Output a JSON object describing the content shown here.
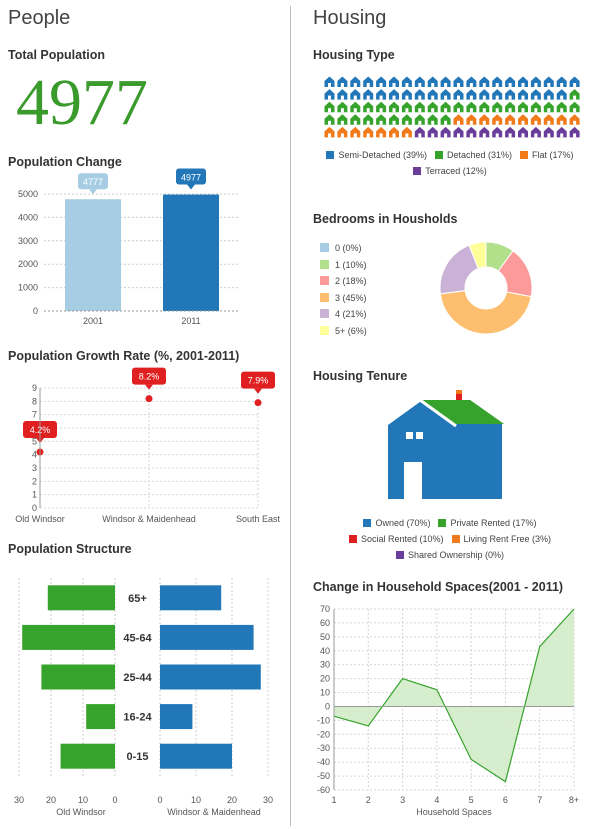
{
  "people": {
    "title": "People",
    "total_population": {
      "label": "Total Population",
      "value": "4977"
    },
    "population_change": {
      "title": "Population Change",
      "chart_data": {
        "type": "bar",
        "categories": [
          "2001",
          "2011"
        ],
        "values": [
          4777,
          4977
        ],
        "value_labels": [
          "4777",
          "4977"
        ],
        "ylim": [
          0,
          5000
        ],
        "yticks": [
          0,
          1000,
          2000,
          3000,
          4000,
          5000
        ],
        "colors": [
          "#a6cde3",
          "#2277b8"
        ],
        "grid": true
      }
    },
    "growth_rate": {
      "title": "Population Growth Rate (%, 2001-2011)",
      "chart_data": {
        "type": "scatter",
        "categories": [
          "Old Windsor",
          "Windsor & Maidenhead",
          "South East"
        ],
        "values": [
          4.2,
          8.2,
          7.9
        ],
        "value_labels": [
          "4.2%",
          "8.2%",
          "7.9%"
        ],
        "ylim": [
          0,
          9
        ],
        "yticks": [
          0,
          1,
          2,
          3,
          4,
          5,
          6,
          7,
          8,
          9
        ],
        "color": "#e02020",
        "grid": true
      }
    },
    "structure": {
      "title": "Population Structure",
      "chart_data": {
        "type": "bar",
        "categories": [
          "65+",
          "45-64",
          "25-44",
          "16-24",
          "0-15"
        ],
        "series": [
          {
            "name": "Old Windsor",
            "values": [
              21,
              29,
              23,
              9,
              17
            ],
            "color": "#36a32c"
          },
          {
            "name": "Windsor & Maidenhead",
            "values": [
              17,
              26,
              28,
              9,
              20
            ],
            "color": "#2277b8"
          }
        ],
        "left_ticks": [
          "30",
          "20",
          "10",
          "0"
        ],
        "right_ticks": [
          "0",
          "10",
          "20",
          "30"
        ],
        "xlim": [
          0,
          30
        ]
      }
    }
  },
  "housing": {
    "title": "Housing",
    "housing_type": {
      "title": "Housing Type",
      "chart_data": {
        "type": "table",
        "icon": "house-icon",
        "grid": {
          "columns": 20,
          "rows": 5
        },
        "categories": [
          {
            "label": "Semi-Detached (39%)",
            "percent": 39,
            "color": "#2277b8"
          },
          {
            "label": "Detached (31%)",
            "percent": 31,
            "color": "#36a32c"
          },
          {
            "label": "Flat (17%)",
            "percent": 17,
            "color": "#f17a1a"
          },
          {
            "label": "Terraced (12%)",
            "percent": 12,
            "color": "#6a3d9a"
          }
        ]
      }
    },
    "bedrooms": {
      "title": "Bedrooms in Housholds",
      "chart_data": {
        "type": "pie",
        "categories": [
          {
            "label": "0 (0%)",
            "value": 0,
            "color": "#a6cde3"
          },
          {
            "label": "1 (10%)",
            "value": 10,
            "color": "#b1df8a"
          },
          {
            "label": "2 (18%)",
            "value": 18,
            "color": "#fb9a99"
          },
          {
            "label": "3 (45%)",
            "value": 45,
            "color": "#fdbf6f"
          },
          {
            "label": "4 (21%)",
            "value": 21,
            "color": "#cab2d6"
          },
          {
            "label": "5+ (6%)",
            "value": 6,
            "color": "#ffff99"
          }
        ]
      }
    },
    "tenure": {
      "title": "Housing Tenure",
      "chart_data": {
        "type": "table",
        "icon": "house-icon",
        "categories": [
          {
            "label": "Owned (70%)",
            "percent": 70,
            "color": "#2277b8"
          },
          {
            "label": "Private Rented (17%)",
            "percent": 17,
            "color": "#36a32c"
          },
          {
            "label": "Social Rented (10%)",
            "percent": 10,
            "color": "#e02020"
          },
          {
            "label": "Living Rent Free (3%)",
            "percent": 3,
            "color": "#f17a1a"
          },
          {
            "label": "Shared Ownership (0%)",
            "percent": 0,
            "color": "#6a3d9a"
          }
        ]
      }
    },
    "spaces": {
      "title": "Change in Household Spaces(2001 - 2011)",
      "chart_data": {
        "type": "area",
        "x": [
          "1",
          "2",
          "3",
          "4",
          "5",
          "6",
          "7",
          "8+"
        ],
        "values": [
          -7,
          -14,
          20,
          12,
          -38,
          -54,
          43,
          70
        ],
        "xlabel": "Household Spaces",
        "ylim": [
          -60,
          70
        ],
        "yticks": [
          70,
          60,
          50,
          40,
          30,
          20,
          10,
          0,
          -10,
          -20,
          -30,
          -40,
          -50,
          -60
        ],
        "line_color": "#36a32c",
        "fill_color": "#d3ecc9",
        "grid": true
      }
    }
  }
}
